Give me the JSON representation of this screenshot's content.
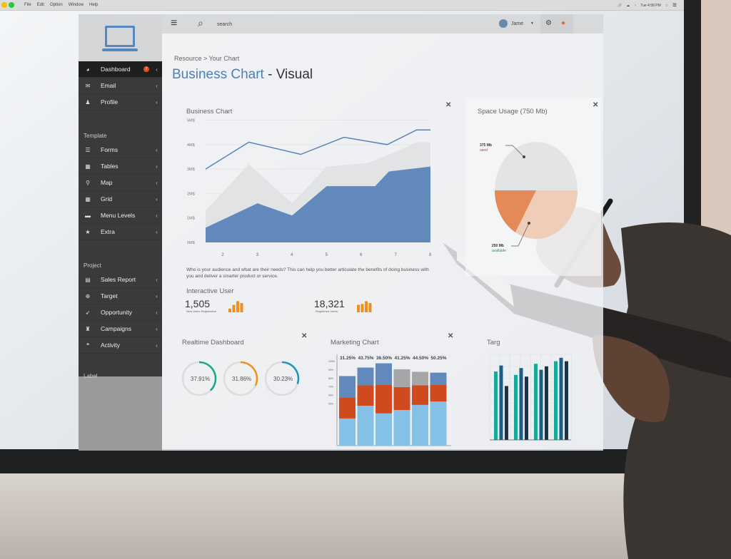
{
  "menubar": {
    "items": [
      "File",
      "Edit",
      "Option",
      "Window",
      "Help"
    ],
    "clock": "Tue 4:58 PM"
  },
  "topbar": {
    "search_placeholder": "search",
    "user": "Jame"
  },
  "sidebar": {
    "sections": [
      {
        "heading": "",
        "items": [
          {
            "label": "Dashboard",
            "icon": "dashboard-icon",
            "badge": "7",
            "active": true
          },
          {
            "label": "Email",
            "icon": "envelope-icon"
          },
          {
            "label": "Profile",
            "icon": "user-icon"
          }
        ]
      },
      {
        "heading": "Template",
        "items": [
          {
            "label": "Forms",
            "icon": "forms-icon"
          },
          {
            "label": "Tables",
            "icon": "table-icon"
          },
          {
            "label": "Map",
            "icon": "map-pin-icon"
          },
          {
            "label": "Grid",
            "icon": "grid-icon"
          },
          {
            "label": "Menu Levels",
            "icon": "folder-icon"
          },
          {
            "label": "Extra",
            "icon": "star-icon"
          }
        ]
      },
      {
        "heading": "Project",
        "items": [
          {
            "label": "Sales Report",
            "icon": "report-icon"
          },
          {
            "label": "Target",
            "icon": "target-icon"
          },
          {
            "label": "Opportunity",
            "icon": "rocket-icon"
          },
          {
            "label": "Campaigns",
            "icon": "campaign-icon"
          },
          {
            "label": "Activity",
            "icon": "chat-icon"
          }
        ]
      },
      {
        "heading": "Label",
        "items": []
      }
    ]
  },
  "page": {
    "breadcrumb": "Resource > Your Chart",
    "title_accent": "Business Chart",
    "title_rest": " - Visual"
  },
  "business": {
    "title": "Business Chart",
    "description": "Who is your audience and what are their needs? This can help you better articulate the benefits of doing business with you and deliver a smarter product or service."
  },
  "interactive": {
    "title": "Interactive User",
    "stats": [
      {
        "value": "1,505",
        "label": "New Users Registration"
      },
      {
        "value": "18,321",
        "label": "Registered Users"
      }
    ]
  },
  "realtime": {
    "title": "Realtime Dashboard",
    "gauges": [
      {
        "label": "37.91%",
        "value": 37.91,
        "color": "#1aa88e"
      },
      {
        "label": "31.86%",
        "value": 31.86,
        "color": "#f0911c"
      },
      {
        "label": "30.23%",
        "value": 30.23,
        "color": "#1b97b5"
      }
    ]
  },
  "space": {
    "title": "Space Usage (750 Mb)",
    "used_value": "375 Mb",
    "used_label": "used",
    "avail_value": "250 Mb",
    "avail_label": "available"
  },
  "marketing": {
    "title": "Marketing Chart"
  },
  "target": {
    "title": "Targ"
  },
  "chart_data": [
    {
      "type": "area",
      "title": "Business Chart",
      "yticks": [
        "0M$",
        "1M$",
        "2M$",
        "3M$",
        "4M$",
        "5M$"
      ],
      "xticks": [
        "2",
        "3",
        "4",
        "5",
        "6",
        "7",
        "8"
      ],
      "ylim": [
        0,
        5
      ],
      "series": [
        {
          "kind": "line",
          "color": "#5b82b8",
          "points": [
            [
              1.5,
              3.0
            ],
            [
              2.75,
              4.1
            ],
            [
              4.25,
              3.6
            ],
            [
              5.5,
              4.3
            ],
            [
              6.75,
              4.0
            ],
            [
              7.6,
              4.6
            ],
            [
              8,
              4.6
            ]
          ]
        },
        {
          "kind": "area",
          "color": "#e2e3e5",
          "points": [
            [
              1.5,
              1.3
            ],
            [
              2.75,
              3.2
            ],
            [
              4.0,
              1.6
            ],
            [
              5.0,
              3.1
            ],
            [
              6.2,
              3.25
            ],
            [
              7.0,
              3.7
            ],
            [
              7.6,
              4.1
            ],
            [
              8,
              4.1
            ]
          ]
        },
        {
          "kind": "area",
          "color": "#6289bb",
          "points": [
            [
              1.5,
              0.6
            ],
            [
              3.0,
              1.6
            ],
            [
              4.0,
              1.1
            ],
            [
              5.0,
              2.3
            ],
            [
              6.4,
              2.3
            ],
            [
              6.8,
              2.9
            ],
            [
              8,
              3.1
            ]
          ]
        }
      ]
    },
    {
      "type": "pie",
      "title": "Space Usage (750 Mb)",
      "slices": [
        {
          "label": "used",
          "value": 375,
          "color": "#e3e4e6"
        },
        {
          "label": "available",
          "value": 250,
          "color": "#f0cdb8"
        },
        {
          "label": "other",
          "value": 125,
          "color": "#e48a58"
        }
      ]
    },
    {
      "type": "bar",
      "stacked": true,
      "title": "Marketing Chart",
      "top_labels": [
        "31.25%",
        "43.75%",
        "36.50%",
        "41.25%",
        "44.50%",
        "50.25%"
      ],
      "yticks": [
        "100%",
        "90%",
        "80%",
        "70%",
        "60%",
        "50%"
      ],
      "inner_ticks": [
        "40%",
        "30%",
        "20%",
        "10%"
      ],
      "bars": [
        [
          32,
          25,
          25,
          "#6289bb"
        ],
        [
          47,
          24,
          21,
          "#6289bb"
        ],
        [
          38,
          34,
          25,
          "#6289bb"
        ],
        [
          42,
          27,
          21,
          "#a5a6a8"
        ],
        [
          48,
          23,
          16,
          "#a5a6a8"
        ],
        [
          52,
          20,
          14,
          "#6289bb"
        ]
      ],
      "colors": [
        "#85c1e6",
        "#cf4a1f"
      ]
    },
    {
      "type": "bar",
      "title": "Targ",
      "groups": [
        [
          80,
          87,
          63
        ],
        [
          76,
          84,
          74
        ],
        [
          89,
          82,
          86
        ],
        [
          92,
          96,
          92
        ]
      ],
      "colors": [
        "#1aa897",
        "#1b5f86",
        "#173544"
      ]
    }
  ]
}
